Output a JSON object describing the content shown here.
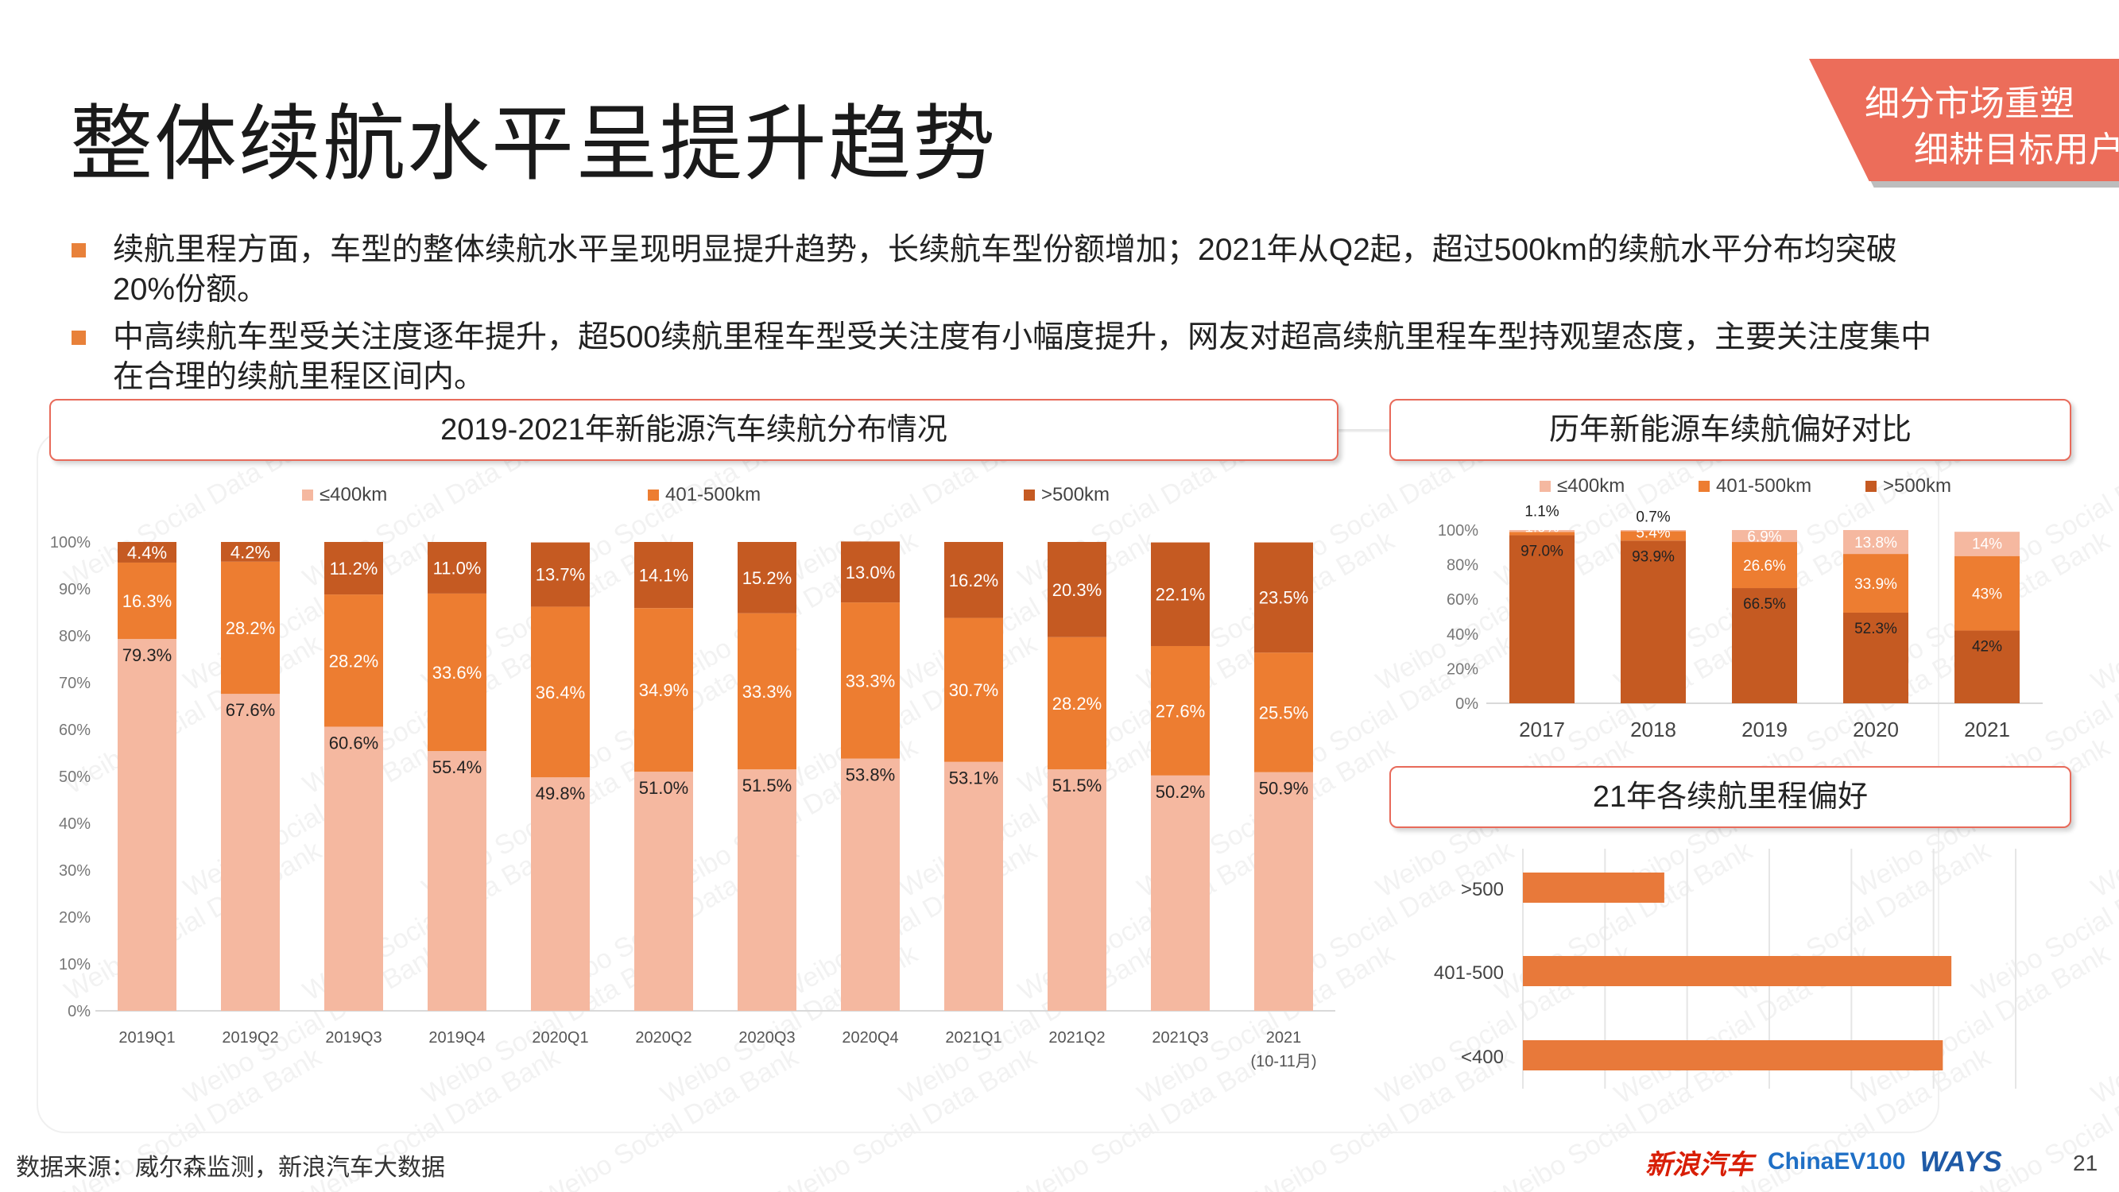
{
  "title": "整体续航水平呈提升趋势",
  "corner": {
    "line1": "细分市场重塑",
    "line2": "细耕目标用户"
  },
  "bullets": [
    "续航里程方面，车型的整体续航水平呈现明显提升趋势，长续航车型份额增加；2021年从Q2起，超过500km的续航水平分布均突破20%份额。",
    "中高续航车型受关注度逐年提升，超500续航里程车型受关注度有小幅度提升，网友对超高续航里程车型持观望态度，主要关注度集中在合理的续航里程区间内。"
  ],
  "watermark_text": "Weibo Social Data Bank",
  "headers": {
    "chart1": "2019-2021年新能源汽车续航分布情况",
    "chart2": "历年新能源车续航偏好对比",
    "chart3": "21年各续航里程偏好"
  },
  "colors": {
    "low": "#f5b8a0",
    "mid": "#ed7d31",
    "high": "#c55a22",
    "bar3": "#e8793a",
    "accent": "#ec6d5a"
  },
  "chart_data": [
    {
      "type": "bar",
      "stacked": true,
      "title": "2019-2021年新能源汽车续航分布情况",
      "categories": [
        "2019Q1",
        "2019Q2",
        "2019Q3",
        "2019Q4",
        "2020Q1",
        "2020Q2",
        "2020Q3",
        "2020Q4",
        "2021Q1",
        "2021Q2",
        "2021Q3",
        "2021"
      ],
      "category_sub": [
        "",
        "",
        "",
        "",
        "",
        "",
        "",
        "",
        "",
        "",
        "",
        "(10-11月)"
      ],
      "legend": [
        "≤400km",
        "401-500km",
        ">500km"
      ],
      "series": [
        {
          "name": "≤400km",
          "values": [
            79.3,
            67.6,
            60.6,
            55.4,
            49.8,
            51.0,
            51.5,
            53.8,
            53.1,
            51.5,
            50.2,
            50.9
          ]
        },
        {
          "name": "401-500km",
          "values": [
            16.3,
            28.2,
            28.2,
            33.6,
            36.4,
            34.9,
            33.3,
            33.3,
            30.7,
            28.2,
            27.6,
            25.5
          ]
        },
        {
          "name": ">500km",
          "values": [
            4.4,
            4.2,
            11.2,
            11.0,
            13.7,
            14.1,
            15.2,
            13.0,
            16.2,
            20.3,
            22.1,
            23.5
          ]
        }
      ],
      "labels": [
        [
          "79.3%",
          "67.6%",
          "60.6%",
          "55.4%",
          "49.8%",
          "51.0%",
          "51.5%",
          "53.8%",
          "53.1%",
          "51.5%",
          "50.2%",
          "50.9%"
        ],
        [
          "16.3%",
          "28.2%",
          "28.2%",
          "33.6%",
          "36.4%",
          "34.9%",
          "33.3%",
          "33.3%",
          "30.7%",
          "28.2%",
          "27.6%",
          "25.5%"
        ],
        [
          "4.4%",
          "4.2%",
          "11.2%",
          "11.0%",
          "13.7%",
          "14.1%",
          "15.2%",
          "13.0%",
          "16.2%",
          "20.3%",
          "22.1%",
          "23.5%"
        ]
      ],
      "yticks": [
        "0%",
        "10%",
        "20%",
        "30%",
        "40%",
        "50%",
        "60%",
        "70%",
        "80%",
        "90%",
        "100%"
      ],
      "ylim": [
        0,
        100
      ]
    },
    {
      "type": "bar",
      "stacked": true,
      "title": "历年新能源车续航偏好对比",
      "categories": [
        "2017",
        "2018",
        "2019",
        "2020",
        "2021"
      ],
      "legend": [
        "≤400km",
        "401-500km",
        ">500km"
      ],
      "series": [
        {
          "name": "≤400km",
          "values": [
            97.0,
            93.9,
            66.5,
            52.3,
            42
          ]
        },
        {
          "name": "401-500km",
          "values": [
            1.9,
            5.4,
            26.6,
            33.9,
            43
          ]
        },
        {
          "name": ">500km",
          "values": [
            1.1,
            0.7,
            6.9,
            13.8,
            14
          ]
        }
      ],
      "labels": [
        [
          "97.0%",
          "93.9%",
          "66.5%",
          "52.3%",
          "42%"
        ],
        [
          "1.9%",
          "5.4%",
          "26.6%",
          "33.9%",
          "43%"
        ],
        [
          "1.1%",
          "0.7%",
          "6.9%",
          "13.8%",
          "14%"
        ]
      ],
      "yticks": [
        "0%",
        "20%",
        "40%",
        "60%",
        "80%",
        "100%"
      ],
      "ylim": [
        0,
        100
      ]
    },
    {
      "type": "bar",
      "orientation": "horizontal",
      "title": "21年各续航里程偏好",
      "categories": [
        ">500",
        "401-500",
        "<400"
      ],
      "values": [
        33,
        100,
        98
      ],
      "xlim": [
        0,
        115
      ]
    }
  ],
  "footer": {
    "source": "数据来源：威尔森监测，新浪汽车大数据",
    "logo1": "新浪汽车",
    "logo2": "ChinaEV100",
    "logo3": "WAYS",
    "page": "21"
  }
}
